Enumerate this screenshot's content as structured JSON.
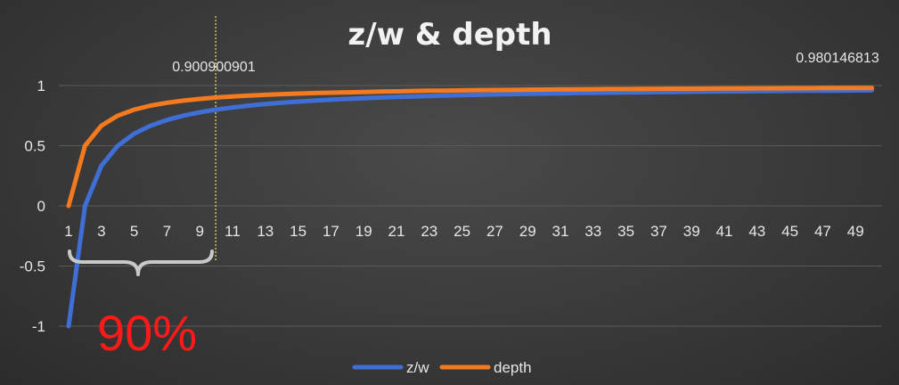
{
  "colors": {
    "zw": "#3f6fd6",
    "depth": "#f37a1f",
    "grid": "#5a5a5a",
    "marker": "#e8e85a",
    "brace": "#c8c8c8",
    "highlight": "#ff1a1a"
  },
  "annotations": {
    "marker_value": "0.900900901",
    "end_value": "0.980146813",
    "percent": "90%"
  },
  "chart_data": {
    "type": "line",
    "title": "z/w & depth",
    "xlabel": "",
    "ylabel": "",
    "ylim": [
      -1,
      1
    ],
    "yticks": [
      1,
      0.5,
      0,
      -0.5,
      -1
    ],
    "ytick_labels": [
      "1",
      "0.5",
      "0",
      "-0.5",
      "-1"
    ],
    "x": [
      1,
      2,
      3,
      4,
      5,
      6,
      7,
      8,
      9,
      10,
      11,
      12,
      13,
      14,
      15,
      16,
      17,
      18,
      19,
      20,
      21,
      22,
      23,
      24,
      25,
      26,
      27,
      28,
      29,
      30,
      31,
      32,
      33,
      34,
      35,
      36,
      37,
      38,
      39,
      40,
      41,
      42,
      43,
      44,
      45,
      46,
      47,
      48,
      49,
      50
    ],
    "xtick_labels": [
      "1",
      "3",
      "5",
      "7",
      "9",
      "11",
      "13",
      "15",
      "17",
      "19",
      "21",
      "23",
      "25",
      "27",
      "29",
      "31",
      "33",
      "35",
      "37",
      "39",
      "41",
      "43",
      "45",
      "47",
      "49"
    ],
    "marker_x": 10,
    "legend": "bottom",
    "grid": true,
    "series": [
      {
        "name": "z/w",
        "color": "#3f6fd6",
        "values": [
          -1,
          0,
          0.333,
          0.5,
          0.6,
          0.667,
          0.714,
          0.75,
          0.778,
          0.8,
          0.818,
          0.833,
          0.846,
          0.857,
          0.867,
          0.875,
          0.882,
          0.889,
          0.895,
          0.9,
          0.905,
          0.909,
          0.913,
          0.917,
          0.92,
          0.923,
          0.926,
          0.929,
          0.931,
          0.933,
          0.935,
          0.938,
          0.939,
          0.941,
          0.943,
          0.944,
          0.946,
          0.947,
          0.949,
          0.95,
          0.951,
          0.952,
          0.953,
          0.955,
          0.956,
          0.957,
          0.957,
          0.958,
          0.959,
          0.96
        ]
      },
      {
        "name": "depth",
        "color": "#f37a1f",
        "values": [
          0,
          0.5,
          0.667,
          0.75,
          0.8,
          0.833,
          0.857,
          0.875,
          0.889,
          0.901,
          0.909,
          0.917,
          0.923,
          0.929,
          0.933,
          0.938,
          0.941,
          0.944,
          0.947,
          0.95,
          0.952,
          0.955,
          0.957,
          0.958,
          0.96,
          0.962,
          0.963,
          0.964,
          0.966,
          0.967,
          0.968,
          0.969,
          0.97,
          0.971,
          0.971,
          0.972,
          0.973,
          0.974,
          0.974,
          0.975,
          0.976,
          0.976,
          0.977,
          0.977,
          0.978,
          0.978,
          0.979,
          0.979,
          0.979,
          0.98
        ]
      }
    ]
  }
}
